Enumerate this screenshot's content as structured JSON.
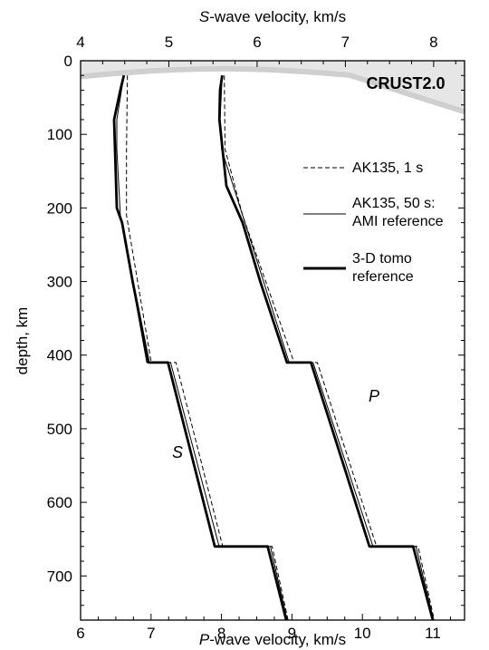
{
  "chart_data": {
    "type": "line",
    "top_axis": {
      "title_italic": "S",
      "title_rest": "-wave velocity, km/s",
      "range": [
        4,
        8.35
      ],
      "ticks": [
        "4",
        "5",
        "6",
        "7",
        "8"
      ]
    },
    "bottom_axis": {
      "title_italic": "P",
      "title_rest": "-wave velocity, km/s",
      "range": [
        6,
        11.45
      ],
      "ticks": [
        "6",
        "7",
        "8",
        "9",
        "10",
        "11"
      ]
    },
    "left_axis": {
      "title": "depth, km",
      "range": [
        0,
        760
      ],
      "inverted": true,
      "ticks": [
        "0",
        "100",
        "200",
        "300",
        "400",
        "500",
        "600",
        "700"
      ]
    },
    "crust_label": "CRUST2.0",
    "curve_labels": {
      "s": "S",
      "p": "P"
    },
    "legend": [
      {
        "label_lines": [
          "AK135, 1 s"
        ],
        "style": "dashed"
      },
      {
        "label_lines": [
          "AK135, 50 s:",
          "AMI reference"
        ],
        "style": "thin"
      },
      {
        "label_lines": [
          "3-D tomo",
          "reference"
        ],
        "style": "thick"
      }
    ],
    "series": [
      {
        "wave": "S",
        "style": "dashed",
        "depth": [
          20,
          120,
          210,
          410,
          410,
          660,
          660,
          760
        ],
        "velocity": [
          4.53,
          4.52,
          4.52,
          4.8,
          5.08,
          5.61,
          6.17,
          6.35
        ]
      },
      {
        "wave": "S",
        "style": "thin",
        "depth": [
          20,
          80,
          120,
          210,
          410,
          410,
          660,
          660,
          760
        ],
        "velocity": [
          4.49,
          4.41,
          4.41,
          4.45,
          4.75,
          5.02,
          5.57,
          6.15,
          6.34
        ]
      },
      {
        "wave": "S",
        "style": "thick",
        "depth": [
          20,
          40,
          80,
          200,
          220,
          300,
          410,
          410,
          660,
          660,
          760
        ],
        "velocity": [
          4.49,
          4.45,
          4.38,
          4.41,
          4.47,
          4.59,
          4.77,
          4.99,
          5.52,
          6.12,
          6.33
        ]
      },
      {
        "wave": "P",
        "style": "dashed",
        "depth": [
          20,
          120,
          210,
          410,
          410,
          660,
          660,
          760
        ],
        "velocity": [
          8.04,
          8.05,
          8.3,
          9.03,
          9.36,
          10.2,
          10.79,
          11.02
        ]
      },
      {
        "wave": "P",
        "style": "thin",
        "depth": [
          20,
          80,
          120,
          210,
          410,
          410,
          660,
          660,
          760
        ],
        "velocity": [
          8.01,
          7.98,
          8.0,
          8.3,
          8.96,
          9.3,
          10.15,
          10.76,
          11.01
        ]
      },
      {
        "wave": "P",
        "style": "thick",
        "depth": [
          20,
          40,
          80,
          170,
          220,
          300,
          410,
          410,
          660,
          660,
          760
        ],
        "velocity": [
          8.01,
          7.98,
          7.97,
          8.07,
          8.3,
          8.55,
          8.93,
          9.27,
          10.1,
          10.72,
          11.0
        ]
      }
    ]
  }
}
